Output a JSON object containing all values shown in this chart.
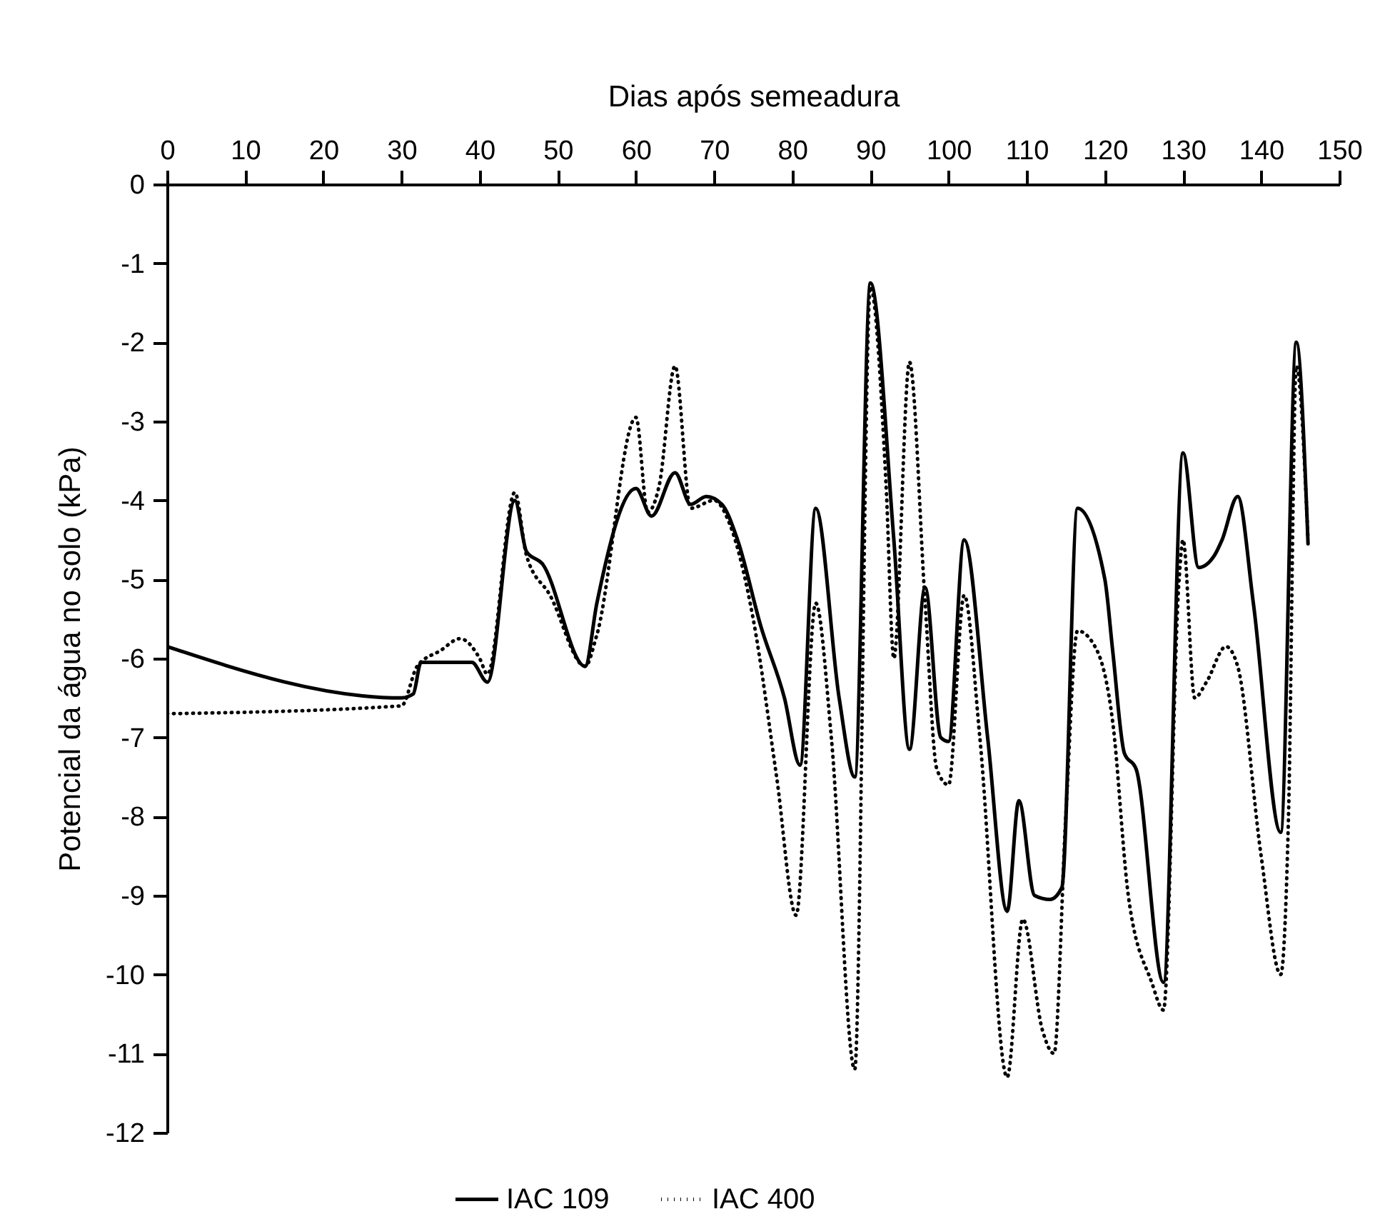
{
  "chart_data": {
    "type": "line",
    "xlabel": "Dias após semeadura",
    "ylabel": "Potencial da água no solo (kPa)",
    "xlim": [
      0,
      150
    ],
    "xticks": [
      0,
      10,
      20,
      30,
      40,
      50,
      60,
      70,
      80,
      90,
      100,
      110,
      120,
      130,
      140,
      150
    ],
    "ylim": [
      -12,
      0
    ],
    "yticks": [
      0,
      -1,
      -2,
      -3,
      -4,
      -5,
      -6,
      -7,
      -8,
      -9,
      -10,
      -11,
      -12
    ],
    "grid": false,
    "legend": "bottom",
    "series": [
      {
        "name": "IAC 109",
        "color": "#000000",
        "line_style": "solid",
        "x": [
          0,
          30,
          31.5,
          32.5,
          35,
          39,
          41,
          44.5,
          46,
          48,
          53.5,
          55,
          60,
          62,
          65,
          67,
          69,
          71,
          73,
          76,
          79,
          81,
          83,
          86,
          88,
          90,
          93,
          95,
          97,
          99,
          100,
          102,
          105,
          107.5,
          109,
          111,
          113,
          114.5,
          116.5,
          120,
          121,
          122.5,
          124,
          127.5,
          130,
          132,
          134,
          135,
          137,
          139,
          142.5,
          144.5,
          146
        ],
        "values": [
          -5.85,
          -6.5,
          -6.45,
          -6.05,
          -6.05,
          -6.05,
          -6.3,
          -4.0,
          -4.65,
          -4.8,
          -6.1,
          -5.3,
          -3.85,
          -4.2,
          -3.65,
          -4.05,
          -3.95,
          -4.05,
          -4.5,
          -5.6,
          -6.5,
          -7.35,
          -4.1,
          -6.5,
          -7.5,
          -1.25,
          -4.5,
          -7.15,
          -5.1,
          -7.0,
          -7.05,
          -4.5,
          -7.0,
          -9.2,
          -7.8,
          -9.0,
          -9.05,
          -8.9,
          -4.1,
          -5.0,
          -5.9,
          -7.2,
          -7.4,
          -10.1,
          -3.4,
          -4.85,
          -4.7,
          -4.5,
          -3.95,
          -5.3,
          -8.2,
          -2.0,
          -4.55
        ]
      },
      {
        "name": "IAC 400",
        "color": "#000000",
        "line_style": "dotted",
        "x": [
          0,
          30,
          32,
          35,
          37.5,
          40,
          41,
          44.5,
          46,
          49,
          53.5,
          55,
          60,
          61.5,
          63,
          65,
          67,
          70,
          72,
          75,
          78,
          80.5,
          83,
          85,
          88,
          90,
          92,
          93,
          95,
          97,
          98.5,
          100,
          102,
          104,
          107.5,
          109.5,
          112,
          113.5,
          115,
          116.5,
          119,
          121,
          123,
          126,
          127.5,
          129.5,
          130,
          131.5,
          133,
          135.5,
          137,
          140,
          142.5,
          143.5,
          144.5,
          146
        ],
        "values": [
          -6.7,
          -6.6,
          -6.1,
          -5.9,
          -5.75,
          -6.0,
          -6.2,
          -3.9,
          -4.7,
          -5.2,
          -6.1,
          -5.7,
          -2.95,
          -4.15,
          -3.8,
          -2.3,
          -4.1,
          -4.0,
          -4.3,
          -5.5,
          -7.5,
          -9.25,
          -5.3,
          -7.0,
          -11.2,
          -1.3,
          -3.8,
          -6.0,
          -2.25,
          -5.3,
          -7.4,
          -7.6,
          -5.2,
          -7.0,
          -11.3,
          -9.3,
          -10.7,
          -11.0,
          -8.0,
          -5.65,
          -5.9,
          -6.8,
          -9.0,
          -10.1,
          -10.45,
          -5.0,
          -4.5,
          -6.5,
          -6.3,
          -5.85,
          -6.1,
          -8.5,
          -10.0,
          -8.0,
          -2.3,
          -4.5
        ]
      }
    ]
  }
}
